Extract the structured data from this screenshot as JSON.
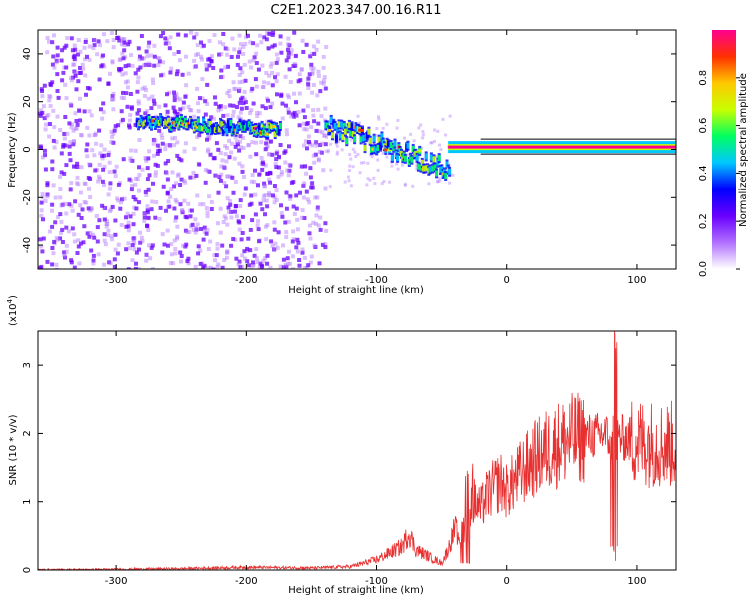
{
  "figure": {
    "title": "C2E1.2023.347.00.16.R11"
  },
  "chart_data": [
    {
      "type": "heatmap",
      "title": "C2E1.2023.347.00.16.R11",
      "xlabel": "Height of straight line (km)",
      "ylabel": "Frequency (Hz)",
      "xlim": [
        -360,
        130
      ],
      "ylim": [
        -50,
        50
      ],
      "xticks": [
        -300,
        -200,
        -100,
        0,
        100
      ],
      "yticks": [
        -40,
        -20,
        0,
        20,
        40
      ],
      "colorbar": {
        "label": "Normalized spectral amplitude",
        "range": [
          0,
          1
        ],
        "ticks": [
          0.0,
          0.2,
          0.4,
          0.6,
          0.8
        ],
        "colormap": [
          "#ffffff",
          "#b070ff",
          "#6a00ff",
          "#0000ff",
          "#00c8ff",
          "#00ff60",
          "#c8ff00",
          "#ffc800",
          "#ff3000",
          "#ff0090"
        ]
      },
      "regions": [
        {
          "desc": "noise",
          "x": [
            -360,
            -140
          ],
          "y": [
            -50,
            50
          ]
        },
        {
          "desc": "signal-band",
          "x": [
            -285,
            -175
          ],
          "freq": [
            12,
            8
          ]
        },
        {
          "desc": "signal-descending",
          "x": [
            -140,
            -45
          ],
          "freq": [
            10,
            -8
          ]
        },
        {
          "desc": "signal-flat",
          "x": [
            -45,
            130
          ],
          "freq": 1
        }
      ]
    },
    {
      "type": "line",
      "xlabel": "Height of straight line (km)",
      "ylabel": "SNR (10 * v/v)",
      "multiplier": "(x10",
      "multiplier_exp": "4",
      "multiplier_close": ")",
      "xlim": [
        -360,
        130
      ],
      "ylim": [
        0,
        3.5
      ],
      "xticks": [
        -300,
        -200,
        -100,
        0,
        100
      ],
      "yticks": [
        0,
        1,
        2,
        3
      ],
      "series": [
        {
          "color": "#e83030",
          "x": [
            -360,
            -300,
            -250,
            -200,
            -150,
            -120,
            -110,
            -100,
            -90,
            -80,
            -75,
            -70,
            -65,
            -60,
            -55,
            -50,
            -45,
            -40,
            -35,
            -30,
            -25,
            -20,
            -15,
            -10,
            -5,
            0,
            10,
            20,
            30,
            40,
            50,
            60,
            70,
            75,
            80,
            85,
            90,
            100,
            110,
            120,
            130
          ],
          "y": [
            0.005,
            0.01,
            0.02,
            0.04,
            0.03,
            0.05,
            0.1,
            0.15,
            0.25,
            0.35,
            0.55,
            0.3,
            0.25,
            0.2,
            0.15,
            0.1,
            0.3,
            0.6,
            0.5,
            0.8,
            1.0,
            0.9,
            1.1,
            1.2,
            1.3,
            1.15,
            1.4,
            1.6,
            1.75,
            1.85,
            1.92,
            1.95,
            1.97,
            2.0,
            1.9,
            1.95,
            1.93,
            1.88,
            1.86,
            1.84,
            1.84
          ]
        }
      ]
    }
  ]
}
